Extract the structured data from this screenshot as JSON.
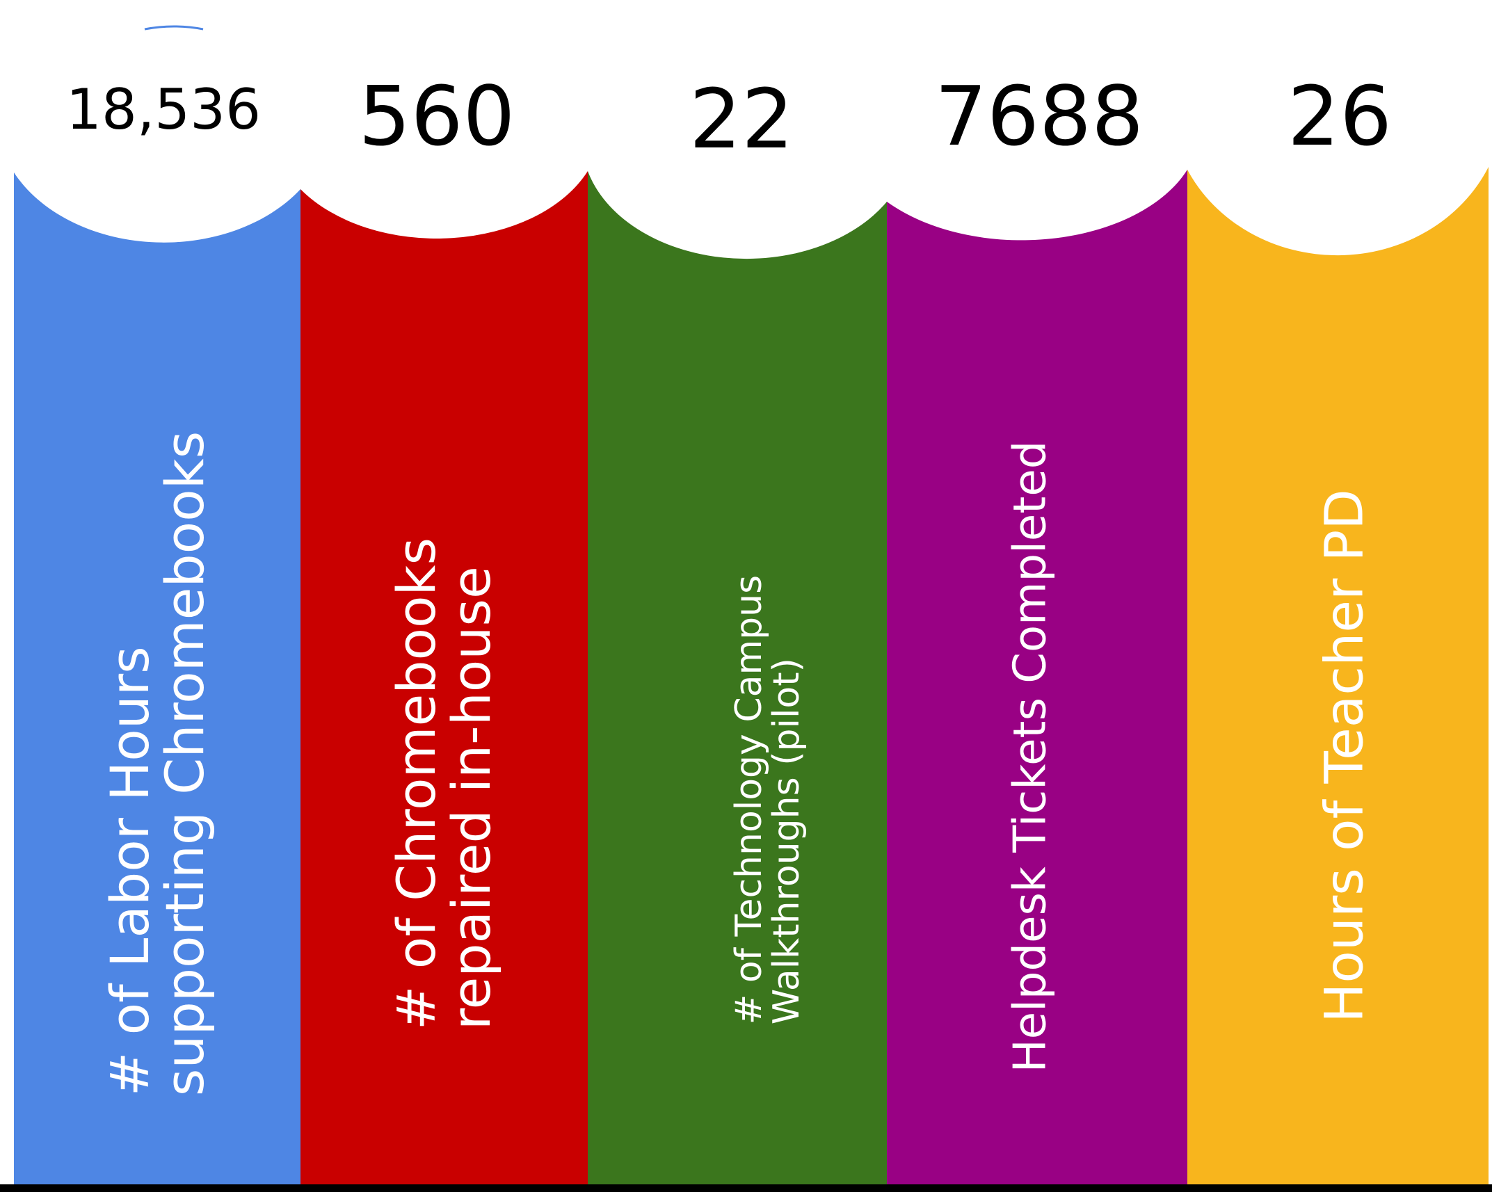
{
  "colors": {
    "blue": "#4e86e4",
    "red": "#c90000",
    "green": "#3b761d",
    "purple": "#990184",
    "yellow": "#f8b51d",
    "number_text": "#000000",
    "label_text": "#ffffff",
    "bottom_border": "#000000"
  },
  "stats": [
    {
      "number": "18,536",
      "label_line1": "# of Labor Hours",
      "label_line2": "supporting Chromebooks",
      "color": "#4e86e4"
    },
    {
      "number": "560",
      "label_line1": "# of Chromebooks",
      "label_line2": "repaired in-house",
      "color": "#c90000"
    },
    {
      "number": "22",
      "label_line1": "# of Technology Campus",
      "label_line2": "Walkthroughs (pilot)",
      "color": "#3b761d"
    },
    {
      "number": "7688",
      "label_line1": "Helpdesk Tickets Completed",
      "label_line2": "",
      "color": "#990184"
    },
    {
      "number": "26",
      "label_line1": "Hours of Teacher PD",
      "label_line2": "",
      "color": "#f8b51d"
    }
  ]
}
